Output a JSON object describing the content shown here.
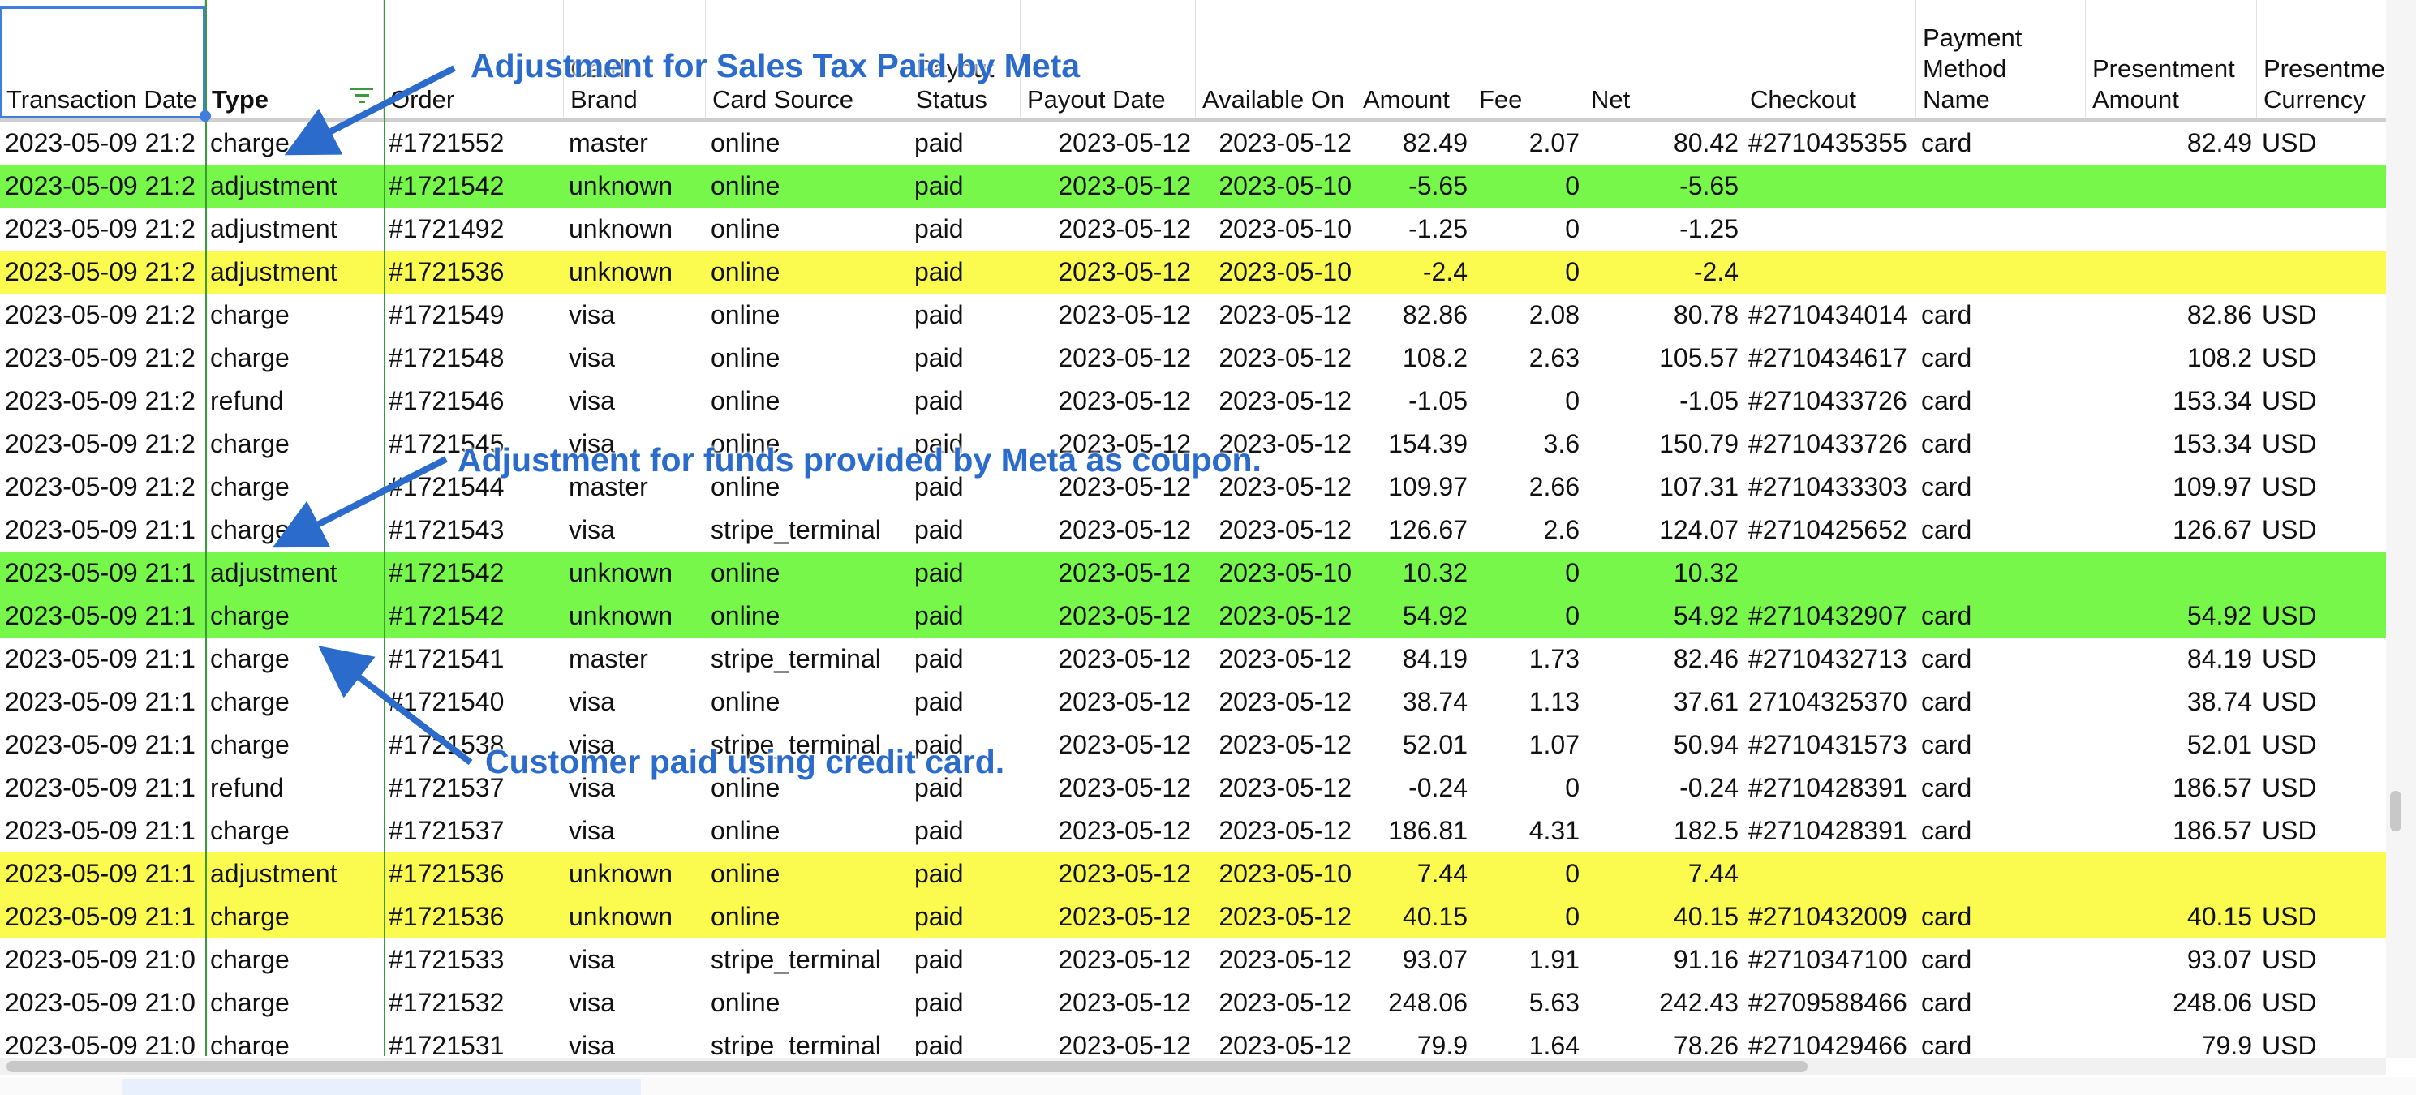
{
  "table": {
    "columns": [
      "Transaction Date",
      "Type",
      "Order",
      "Card Brand",
      "Card Source",
      "Payout Status",
      "Payout Date",
      "Available On",
      "Amount",
      "Fee",
      "Net",
      "Checkout",
      "Payment Method Name",
      "Presentment Amount",
      "Presentment Currency"
    ],
    "highlights": {
      "green": "#77f74a",
      "yellow": "#fbfb4f"
    },
    "rows": [
      {
        "cells": [
          "2023-05-09 21:2",
          "charge",
          "#1721552",
          "master",
          "online",
          "paid",
          "2023-05-12",
          "2023-05-12",
          82.49,
          2.07,
          80.42,
          "#2710435355",
          "card",
          82.49,
          "USD"
        ]
      },
      {
        "highlight": "green",
        "cells": [
          "2023-05-09 21:2",
          "adjustment",
          "#1721542",
          "unknown",
          "online",
          "paid",
          "2023-05-12",
          "2023-05-10",
          -5.65,
          0,
          -5.65,
          null,
          null,
          null,
          null
        ]
      },
      {
        "cells": [
          "2023-05-09 21:2",
          "adjustment",
          "#1721492",
          "unknown",
          "online",
          "paid",
          "2023-05-12",
          "2023-05-10",
          -1.25,
          0,
          -1.25,
          null,
          null,
          null,
          null
        ]
      },
      {
        "highlight": "yellow",
        "cells": [
          "2023-05-09 21:2",
          "adjustment",
          "#1721536",
          "unknown",
          "online",
          "paid",
          "2023-05-12",
          "2023-05-10",
          -2.4,
          0,
          -2.4,
          null,
          null,
          null,
          null
        ]
      },
      {
        "cells": [
          "2023-05-09 21:2",
          "charge",
          "#1721549",
          "visa",
          "online",
          "paid",
          "2023-05-12",
          "2023-05-12",
          82.86,
          2.08,
          80.78,
          "#2710434014",
          "card",
          82.86,
          "USD"
        ]
      },
      {
        "cells": [
          "2023-05-09 21:2",
          "charge",
          "#1721548",
          "visa",
          "online",
          "paid",
          "2023-05-12",
          "2023-05-12",
          108.2,
          2.63,
          105.57,
          "#2710434617",
          "card",
          108.2,
          "USD"
        ]
      },
      {
        "cells": [
          "2023-05-09 21:2",
          "refund",
          "#1721546",
          "visa",
          "online",
          "paid",
          "2023-05-12",
          "2023-05-12",
          -1.05,
          0,
          -1.05,
          "#2710433726",
          "card",
          153.34,
          "USD"
        ]
      },
      {
        "cells": [
          "2023-05-09 21:2",
          "charge",
          "#1721545",
          "visa",
          "online",
          "paid",
          "2023-05-12",
          "2023-05-12",
          154.39,
          3.6,
          150.79,
          "#2710433726",
          "card",
          153.34,
          "USD"
        ]
      },
      {
        "cells": [
          "2023-05-09 21:2",
          "charge",
          "#1721544",
          "master",
          "online",
          "paid",
          "2023-05-12",
          "2023-05-12",
          109.97,
          2.66,
          107.31,
          "#2710433303",
          "card",
          109.97,
          "USD"
        ]
      },
      {
        "cells": [
          "2023-05-09 21:1",
          "charge",
          "#1721543",
          "visa",
          "stripe_terminal",
          "paid",
          "2023-05-12",
          "2023-05-12",
          126.67,
          2.6,
          124.07,
          "#2710425652",
          "card",
          126.67,
          "USD"
        ]
      },
      {
        "highlight": "green",
        "cells": [
          "2023-05-09 21:1",
          "adjustment",
          "#1721542",
          "unknown",
          "online",
          "paid",
          "2023-05-12",
          "2023-05-10",
          10.32,
          0,
          10.32,
          null,
          null,
          null,
          null
        ]
      },
      {
        "highlight": "green",
        "cells": [
          "2023-05-09 21:1",
          "charge",
          "#1721542",
          "unknown",
          "online",
          "paid",
          "2023-05-12",
          "2023-05-12",
          54.92,
          0,
          54.92,
          "#2710432907",
          "card",
          54.92,
          "USD"
        ]
      },
      {
        "cells": [
          "2023-05-09 21:1",
          "charge",
          "#1721541",
          "master",
          "stripe_terminal",
          "paid",
          "2023-05-12",
          "2023-05-12",
          84.19,
          1.73,
          82.46,
          "#2710432713",
          "card",
          84.19,
          "USD"
        ]
      },
      {
        "cells": [
          "2023-05-09 21:1",
          "charge",
          "#1721540",
          "visa",
          "online",
          "paid",
          "2023-05-12",
          "2023-05-12",
          38.74,
          1.13,
          37.61,
          "27104325370",
          "card",
          38.74,
          "USD"
        ]
      },
      {
        "cells": [
          "2023-05-09 21:1",
          "charge",
          "#1721538",
          "visa",
          "stripe_terminal",
          "paid",
          "2023-05-12",
          "2023-05-12",
          52.01,
          1.07,
          50.94,
          "#2710431573",
          "card",
          52.01,
          "USD"
        ]
      },
      {
        "cells": [
          "2023-05-09 21:1",
          "refund",
          "#1721537",
          "visa",
          "online",
          "paid",
          "2023-05-12",
          "2023-05-12",
          -0.24,
          0,
          -0.24,
          "#2710428391",
          "card",
          186.57,
          "USD"
        ]
      },
      {
        "cells": [
          "2023-05-09 21:1",
          "charge",
          "#1721537",
          "visa",
          "online",
          "paid",
          "2023-05-12",
          "2023-05-12",
          186.81,
          4.31,
          182.5,
          "#2710428391",
          "card",
          186.57,
          "USD"
        ]
      },
      {
        "highlight": "yellow",
        "cells": [
          "2023-05-09 21:1",
          "adjustment",
          "#1721536",
          "unknown",
          "online",
          "paid",
          "2023-05-12",
          "2023-05-10",
          7.44,
          0,
          7.44,
          null,
          null,
          null,
          null
        ]
      },
      {
        "highlight": "yellow",
        "cells": [
          "2023-05-09 21:1",
          "charge",
          "#1721536",
          "unknown",
          "online",
          "paid",
          "2023-05-12",
          "2023-05-12",
          40.15,
          0,
          40.15,
          "#2710432009",
          "card",
          40.15,
          "USD"
        ]
      },
      {
        "cells": [
          "2023-05-09 21:0",
          "charge",
          "#1721533",
          "visa",
          "stripe_terminal",
          "paid",
          "2023-05-12",
          "2023-05-12",
          93.07,
          1.91,
          91.16,
          "#2710347100",
          "card",
          93.07,
          "USD"
        ]
      },
      {
        "cells": [
          "2023-05-09 21:0",
          "charge",
          "#1721532",
          "visa",
          "online",
          "paid",
          "2023-05-12",
          "2023-05-12",
          248.06,
          5.63,
          242.43,
          "#2709588466",
          "card",
          248.06,
          "USD"
        ]
      },
      {
        "cells": [
          "2023-05-09 21:0",
          "charge",
          "#1721531",
          "visa",
          "stripe_terminal",
          "paid",
          "2023-05-12",
          "2023-05-12",
          79.9,
          1.64,
          78.26,
          "#2710429466",
          "card",
          79.9,
          "USD"
        ]
      }
    ]
  },
  "annotations": [
    "Adjustment for Sales Tax Paid by Meta",
    "Adjustment for funds provided by Meta as coupon.",
    "Customer paid using credit card."
  ]
}
